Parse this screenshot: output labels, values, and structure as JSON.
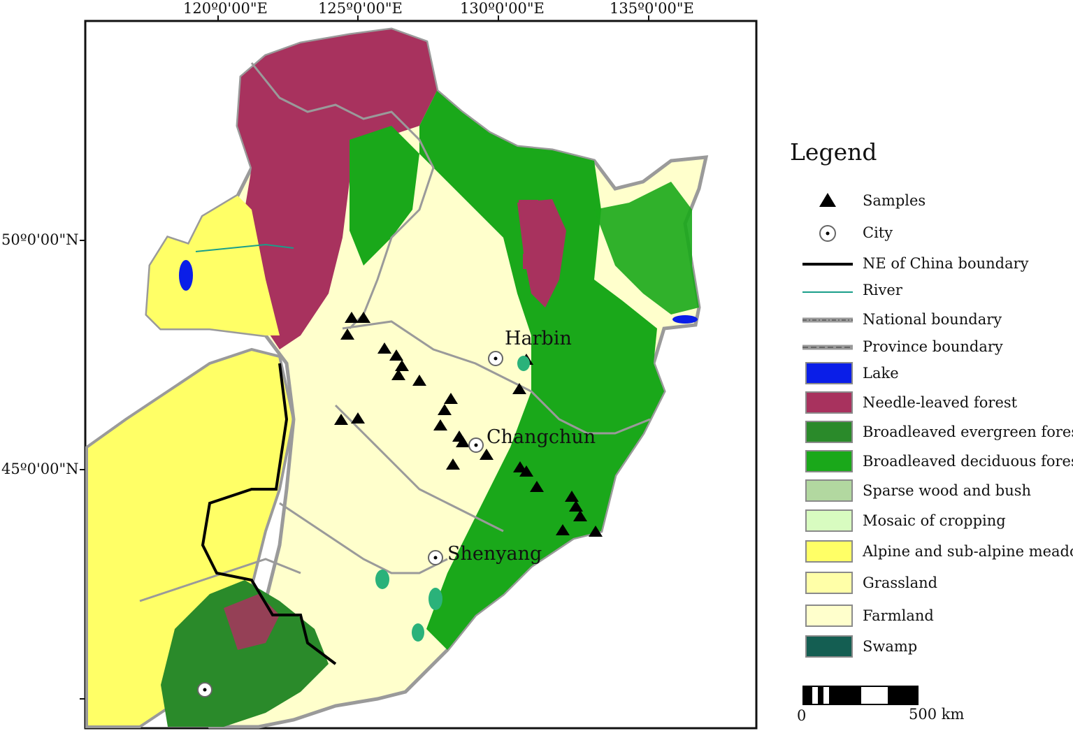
{
  "map": {
    "longitude_labels": [
      "120º0'00\"E",
      "125º0'00\"E",
      "130º0'00\"E",
      "135º0'00\"E"
    ],
    "latitude_labels": [
      "50º0'00\"N",
      "45º0'00\"N"
    ],
    "cities": [
      {
        "name": "Harbin"
      },
      {
        "name": "Changchun"
      },
      {
        "name": "Shenyang"
      }
    ]
  },
  "legend": {
    "title": "Legend",
    "items": [
      {
        "label": "Samples",
        "symbol": "triangle-icon"
      },
      {
        "label": "City",
        "symbol": "city-dot-icon"
      },
      {
        "label": "NE of China boundary",
        "symbol": "thick-black-line"
      },
      {
        "label": "River",
        "symbol": "teal-line",
        "color": "#1a9e8a"
      },
      {
        "label": "National boundary",
        "symbol": "gray-dash-line"
      },
      {
        "label": "Province boundary",
        "symbol": "gray-dash-line"
      },
      {
        "label": "Lake",
        "color": "#0a1ee8"
      },
      {
        "label": "Needle-leaved forest",
        "color": "#a8325e"
      },
      {
        "label": "Broadleaved evergreen forest",
        "color": "#2a8a2a"
      },
      {
        "label": "Broadleaved deciduous forest",
        "color": "#1aa81a"
      },
      {
        "label": "Sparse wood and bush",
        "color": "#b2d8a0"
      },
      {
        "label": "Mosaic of cropping",
        "color": "#d8fcc0"
      },
      {
        "label": "Alpine and sub-alpine meadow",
        "color": "#ffff66"
      },
      {
        "label": "Grassland",
        "color": "#ffffa8"
      },
      {
        "label": "Farmland",
        "color": "#ffffcc"
      },
      {
        "label": "Swamp",
        "color": "#145e52"
      }
    ]
  },
  "scale_bar": {
    "start": "0",
    "end": "500 km"
  }
}
